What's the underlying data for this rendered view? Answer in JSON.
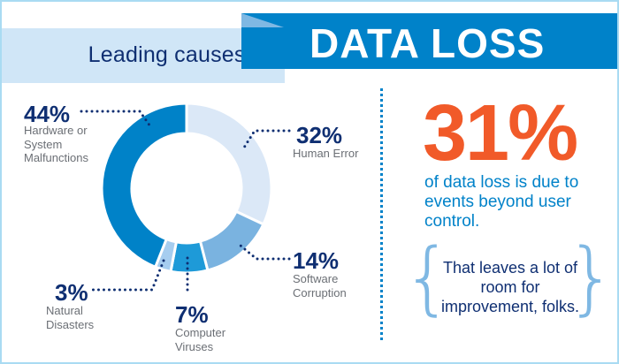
{
  "header": {
    "subtitle": "Leading causes of",
    "title": "DATA LOSS"
  },
  "chart_data": {
    "type": "pie",
    "variant": "donut",
    "start": "top",
    "direction": "clockwise",
    "slices": [
      {
        "pct": "32%",
        "value": 32,
        "label": "Human Error",
        "color": "#dbe8f7"
      },
      {
        "pct": "14%",
        "value": 14,
        "label": "Software Corruption",
        "color": "#7ab3e0"
      },
      {
        "pct": "7%",
        "value": 7,
        "label": "Computer Viruses",
        "color": "#1e9ad8"
      },
      {
        "pct": "3%",
        "value": 3,
        "label": "Natural Disasters",
        "color": "#a6cdef"
      },
      {
        "pct": "44%",
        "value": 44,
        "label": "Hardware or System Malfunctions",
        "color": "#0082c8"
      }
    ]
  },
  "stat": {
    "value": "31%",
    "description": "of data loss is due to events beyond user control.",
    "note": "That leaves a lot of room for improvement, folks."
  }
}
